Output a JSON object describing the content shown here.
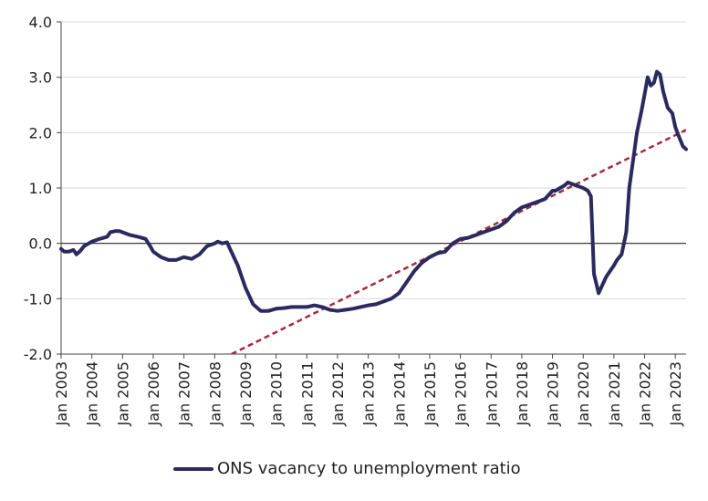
{
  "chart_data": {
    "type": "line",
    "title": "",
    "xlabel": "",
    "ylabel": "",
    "ylim": [
      -2.0,
      4.0
    ],
    "xlim": [
      2003.0,
      2023.35
    ],
    "y_ticks": [
      "4.0",
      "3.0",
      "2.0",
      "1.0",
      "0.0",
      "-1.0",
      "-2.0"
    ],
    "y_tick_values": [
      4,
      3,
      2,
      1,
      0,
      -1,
      -2
    ],
    "x_ticks": [
      "Jan 2003",
      "Jan 2004",
      "Jan 2005",
      "Jan 2006",
      "Jan 2007",
      "Jan 2008",
      "Jan 2009",
      "Jan 2010",
      "Jan 2011",
      "Jan 2012",
      "Jan 2013",
      "Jan 2014",
      "Jan 2015",
      "Jan 2016",
      "Jan 2017",
      "Jan 2018",
      "Jan 2019",
      "Jan 2020",
      "Jan 2021",
      "Jan 2022",
      "Jan 2023"
    ],
    "x_tick_values": [
      2003,
      2004,
      2005,
      2006,
      2007,
      2008,
      2009,
      2010,
      2011,
      2012,
      2013,
      2014,
      2015,
      2016,
      2017,
      2018,
      2019,
      2020,
      2021,
      2022,
      2023
    ],
    "grid": true,
    "legend_position": "bottom",
    "series": [
      {
        "name": "ONS vacancy to unemployment ratio",
        "color": "#2b2a5e",
        "x": [
          2003.0,
          2003.1,
          2003.25,
          2003.4,
          2003.5,
          2003.6,
          2003.75,
          2003.9,
          2004.0,
          2004.25,
          2004.5,
          2004.6,
          2004.75,
          2004.9,
          2005.0,
          2005.25,
          2005.5,
          2005.75,
          2005.9,
          2006.0,
          2006.25,
          2006.5,
          2006.75,
          2007.0,
          2007.25,
          2007.5,
          2007.75,
          2008.0,
          2008.1,
          2008.25,
          2008.4,
          2008.5,
          2008.75,
          2009.0,
          2009.25,
          2009.5,
          2009.75,
          2010.0,
          2010.25,
          2010.5,
          2010.75,
          2011.0,
          2011.25,
          2011.5,
          2011.75,
          2012.0,
          2012.25,
          2012.5,
          2012.75,
          2013.0,
          2013.25,
          2013.5,
          2013.75,
          2014.0,
          2014.25,
          2014.5,
          2014.75,
          2015.0,
          2015.25,
          2015.5,
          2015.75,
          2016.0,
          2016.25,
          2016.5,
          2016.75,
          2017.0,
          2017.25,
          2017.5,
          2017.75,
          2018.0,
          2018.25,
          2018.5,
          2018.75,
          2019.0,
          2019.1,
          2019.25,
          2019.4,
          2019.5,
          2019.75,
          2020.0,
          2020.15,
          2020.25,
          2020.35,
          2020.5,
          2020.75,
          2021.0,
          2021.1,
          2021.25,
          2021.4,
          2021.5,
          2021.75,
          2021.9,
          2022.0,
          2022.1,
          2022.2,
          2022.3,
          2022.4,
          2022.5,
          2022.6,
          2022.75,
          2022.9,
          2023.0,
          2023.1,
          2023.25,
          2023.35
        ],
        "values": [
          -0.1,
          -0.15,
          -0.15,
          -0.12,
          -0.2,
          -0.15,
          -0.05,
          0.0,
          0.03,
          0.08,
          0.12,
          0.2,
          0.22,
          0.22,
          0.2,
          0.15,
          0.12,
          0.08,
          -0.05,
          -0.15,
          -0.25,
          -0.3,
          -0.3,
          -0.25,
          -0.28,
          -0.2,
          -0.05,
          0.0,
          0.03,
          0.0,
          0.02,
          -0.1,
          -0.4,
          -0.8,
          -1.1,
          -1.22,
          -1.22,
          -1.18,
          -1.17,
          -1.15,
          -1.15,
          -1.15,
          -1.12,
          -1.15,
          -1.2,
          -1.22,
          -1.2,
          -1.18,
          -1.15,
          -1.12,
          -1.1,
          -1.05,
          -1.0,
          -0.9,
          -0.7,
          -0.5,
          -0.35,
          -0.25,
          -0.18,
          -0.15,
          0.0,
          0.08,
          0.1,
          0.15,
          0.2,
          0.25,
          0.3,
          0.4,
          0.55,
          0.65,
          0.7,
          0.75,
          0.8,
          0.95,
          0.95,
          1.0,
          1.05,
          1.1,
          1.05,
          1.0,
          0.95,
          0.85,
          -0.55,
          -0.9,
          -0.6,
          -0.4,
          -0.3,
          -0.2,
          0.2,
          1.0,
          2.0,
          2.4,
          2.7,
          3.0,
          2.85,
          2.9,
          3.1,
          3.05,
          2.75,
          2.45,
          2.35,
          2.1,
          1.95,
          1.75,
          1.7
        ]
      }
    ],
    "trendline": {
      "name": "trend",
      "color": "#a52a3a",
      "style": "dashed",
      "x": [
        2008.55,
        2023.35
      ],
      "values": [
        -2.0,
        2.05
      ]
    }
  }
}
